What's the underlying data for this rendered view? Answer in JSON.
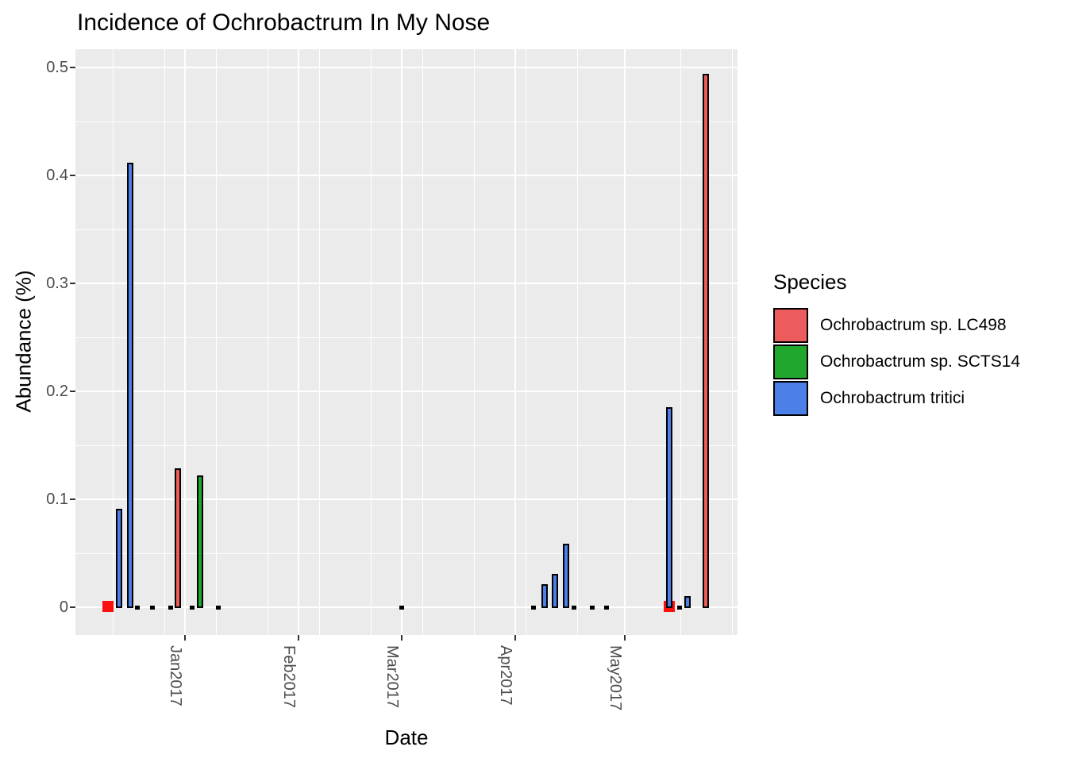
{
  "title": "Incidence of Ochrobactrum In My Nose",
  "axes": {
    "x": {
      "title": "Date",
      "tick_labels": [
        "Jan2017",
        "Feb2017",
        "Mar2017",
        "Apr2017",
        "May2017"
      ],
      "tick_days": [
        31,
        62,
        90,
        121,
        151
      ]
    },
    "y": {
      "title": "Abundance (%)",
      "tick_labels": [
        "0",
        "0.1",
        "0.2",
        "0.3",
        "0.4",
        "0.5"
      ],
      "tick_values": [
        0,
        0.1,
        0.2,
        0.3,
        0.4,
        0.5
      ],
      "minor_values": [
        0.05,
        0.15,
        0.25,
        0.35,
        0.45
      ],
      "range": [
        0,
        0.5
      ]
    }
  },
  "legend": {
    "title": "Species",
    "entries": [
      {
        "label": "Ochrobactrum sp. LC498",
        "color": "#EC5C5C"
      },
      {
        "label": "Ochrobactrum sp. SCTS14",
        "color": "#1FA82D"
      },
      {
        "label": "Ochrobactrum tritici",
        "color": "#4C7FE8"
      }
    ]
  },
  "colors": {
    "panel_bg": "#EBEBEB",
    "grid": "#FFFFFF",
    "axis_text": "#4D4D4D",
    "tick_mark": "#333333",
    "bar_outline": "#000000",
    "marker_red": "#FB0F0F",
    "trace_black": "#000000",
    "species": {
      "Ochrobactrum sp. LC498": "#EC5C5C",
      "Ochrobactrum sp. SCTS14": "#1FA82D",
      "Ochrobactrum tritici": "#4C7FE8"
    }
  },
  "chart_data": {
    "type": "bar",
    "title": "Incidence of Ochrobactrum In My Nose",
    "xlabel": "Date",
    "ylabel": "Abundance (%)",
    "ylim": [
      0,
      0.5
    ],
    "grid": true,
    "legend_position": "right",
    "note": "day = days since 2016-12-01; kind marker = bright red square at baseline; kind trace = near-zero black tick",
    "bars": [
      {
        "date": "2016-12-11",
        "day": 10,
        "kind": "marker",
        "species": "Ochrobactrum sp. LC498",
        "value": 0
      },
      {
        "date": "2016-12-14",
        "day": 13,
        "kind": "bar",
        "species": "Ochrobactrum tritici",
        "value": 0.091
      },
      {
        "date": "2016-12-17",
        "day": 16,
        "kind": "bar",
        "species": "Ochrobactrum tritici",
        "value": 0.412
      },
      {
        "date": "2016-12-19",
        "day": 18,
        "kind": "trace",
        "species": "unknown",
        "value": 0
      },
      {
        "date": "2016-12-23",
        "day": 22,
        "kind": "trace",
        "species": "unknown",
        "value": 0
      },
      {
        "date": "2016-12-28",
        "day": 27,
        "kind": "trace",
        "species": "unknown",
        "value": 0
      },
      {
        "date": "2016-12-30",
        "day": 29,
        "kind": "bar",
        "species": "Ochrobactrum sp. LC498",
        "value": 0.129
      },
      {
        "date": "2017-01-03",
        "day": 33,
        "kind": "trace",
        "species": "unknown",
        "value": 0
      },
      {
        "date": "2017-01-05",
        "day": 35,
        "kind": "bar",
        "species": "Ochrobactrum sp. SCTS14",
        "value": 0.122
      },
      {
        "date": "2017-01-09",
        "day": 40,
        "kind": "trace",
        "species": "unknown",
        "value": 0
      },
      {
        "date": "2017-03-01",
        "day": 90,
        "kind": "trace",
        "species": "unknown",
        "value": 0
      },
      {
        "date": "2017-04-06",
        "day": 126,
        "kind": "trace",
        "species": "unknown",
        "value": 0
      },
      {
        "date": "2017-04-09",
        "day": 129,
        "kind": "bar",
        "species": "Ochrobactrum tritici",
        "value": 0.021
      },
      {
        "date": "2017-04-12",
        "day": 132,
        "kind": "bar",
        "species": "Ochrobactrum tritici",
        "value": 0.031
      },
      {
        "date": "2017-04-15",
        "day": 135,
        "kind": "bar",
        "species": "Ochrobactrum tritici",
        "value": 0.059
      },
      {
        "date": "2017-04-17",
        "day": 137,
        "kind": "trace",
        "species": "unknown",
        "value": 0
      },
      {
        "date": "2017-04-22",
        "day": 142,
        "kind": "trace",
        "species": "unknown",
        "value": 0
      },
      {
        "date": "2017-04-26",
        "day": 146,
        "kind": "trace",
        "species": "unknown",
        "value": 0
      },
      {
        "date": "2017-05-13",
        "day": 163,
        "kind": "marker",
        "species": "Ochrobactrum sp. LC498",
        "value": 0
      },
      {
        "date": "2017-05-13",
        "day": 163,
        "kind": "bar",
        "species": "Ochrobactrum tritici",
        "value": 0.185
      },
      {
        "date": "2017-05-16",
        "day": 166,
        "kind": "trace",
        "species": "unknown",
        "value": 0
      },
      {
        "date": "2017-05-18",
        "day": 168,
        "kind": "bar",
        "species": "Ochrobactrum tritici",
        "value": 0.01
      },
      {
        "date": "2017-05-23",
        "day": 173,
        "kind": "bar",
        "species": "Ochrobactrum sp. LC498",
        "value": 0.494
      }
    ]
  }
}
